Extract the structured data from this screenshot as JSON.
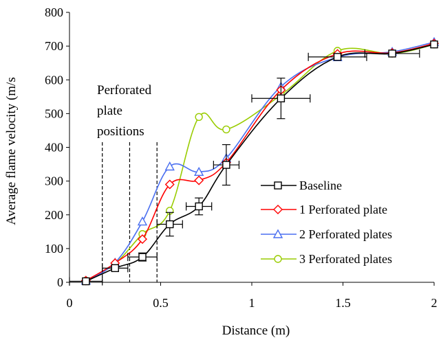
{
  "chart_data": {
    "type": "line",
    "xlabel": "Distance (m)",
    "ylabel": "Average flame velocity (m/s",
    "xlim": [
      0,
      2
    ],
    "ylim": [
      0,
      800
    ],
    "x_ticks": [
      0,
      0.5,
      1,
      1.5,
      2
    ],
    "x_tick_labels": [
      "0",
      "0.5",
      "1",
      "1.5",
      "2"
    ],
    "y_ticks": [
      0,
      100,
      200,
      300,
      400,
      500,
      600,
      700,
      800
    ],
    "y_tick_labels": [
      "0",
      "100",
      "200",
      "300",
      "400",
      "500",
      "600",
      "700",
      "800"
    ],
    "grid": false,
    "legend_position": "right",
    "annotation": {
      "lines": [
        "Perforated",
        "plate",
        "positions"
      ],
      "plate_positions_m": [
        0.18,
        0.33,
        0.48
      ]
    },
    "series": [
      {
        "name": "Baseline",
        "color": "#000000",
        "marker": "square",
        "x": [
          0.09,
          0.25,
          0.4,
          0.55,
          0.71,
          0.86,
          1.16,
          1.47,
          1.77,
          2.0
        ],
        "y": [
          3,
          42,
          75,
          172,
          225,
          348,
          545,
          668,
          678,
          705
        ],
        "xerr": [
          0.09,
          0.07,
          0.08,
          0.07,
          0.07,
          0.07,
          0.16,
          0.16,
          0.15,
          0
        ],
        "yerr": [
          0,
          0,
          12,
          35,
          25,
          60,
          60,
          0,
          0,
          0
        ]
      },
      {
        "name": "1 Perforated plate",
        "color": "#ff0000",
        "marker": "diamond",
        "x": [
          0.09,
          0.25,
          0.4,
          0.55,
          0.71,
          0.86,
          1.16,
          1.47,
          1.77,
          2.0
        ],
        "y": [
          5,
          57,
          128,
          290,
          302,
          355,
          570,
          677,
          680,
          708
        ]
      },
      {
        "name": "2 Perforated plates",
        "color": "#4a6ff0",
        "marker": "triangle",
        "x": [
          0.09,
          0.25,
          0.4,
          0.55,
          0.71,
          0.86,
          1.16,
          1.47,
          1.77,
          2.0
        ],
        "y": [
          5,
          58,
          180,
          343,
          327,
          368,
          580,
          667,
          683,
          712
        ]
      },
      {
        "name": "3 Perforated plates",
        "color": "#99cc00",
        "marker": "circle",
        "x": [
          0.09,
          0.25,
          0.4,
          0.55,
          0.71,
          0.86,
          1.16,
          1.47,
          1.77,
          2.0
        ],
        "y": [
          5,
          55,
          143,
          212,
          490,
          453,
          555,
          686,
          678,
          705
        ]
      }
    ]
  }
}
